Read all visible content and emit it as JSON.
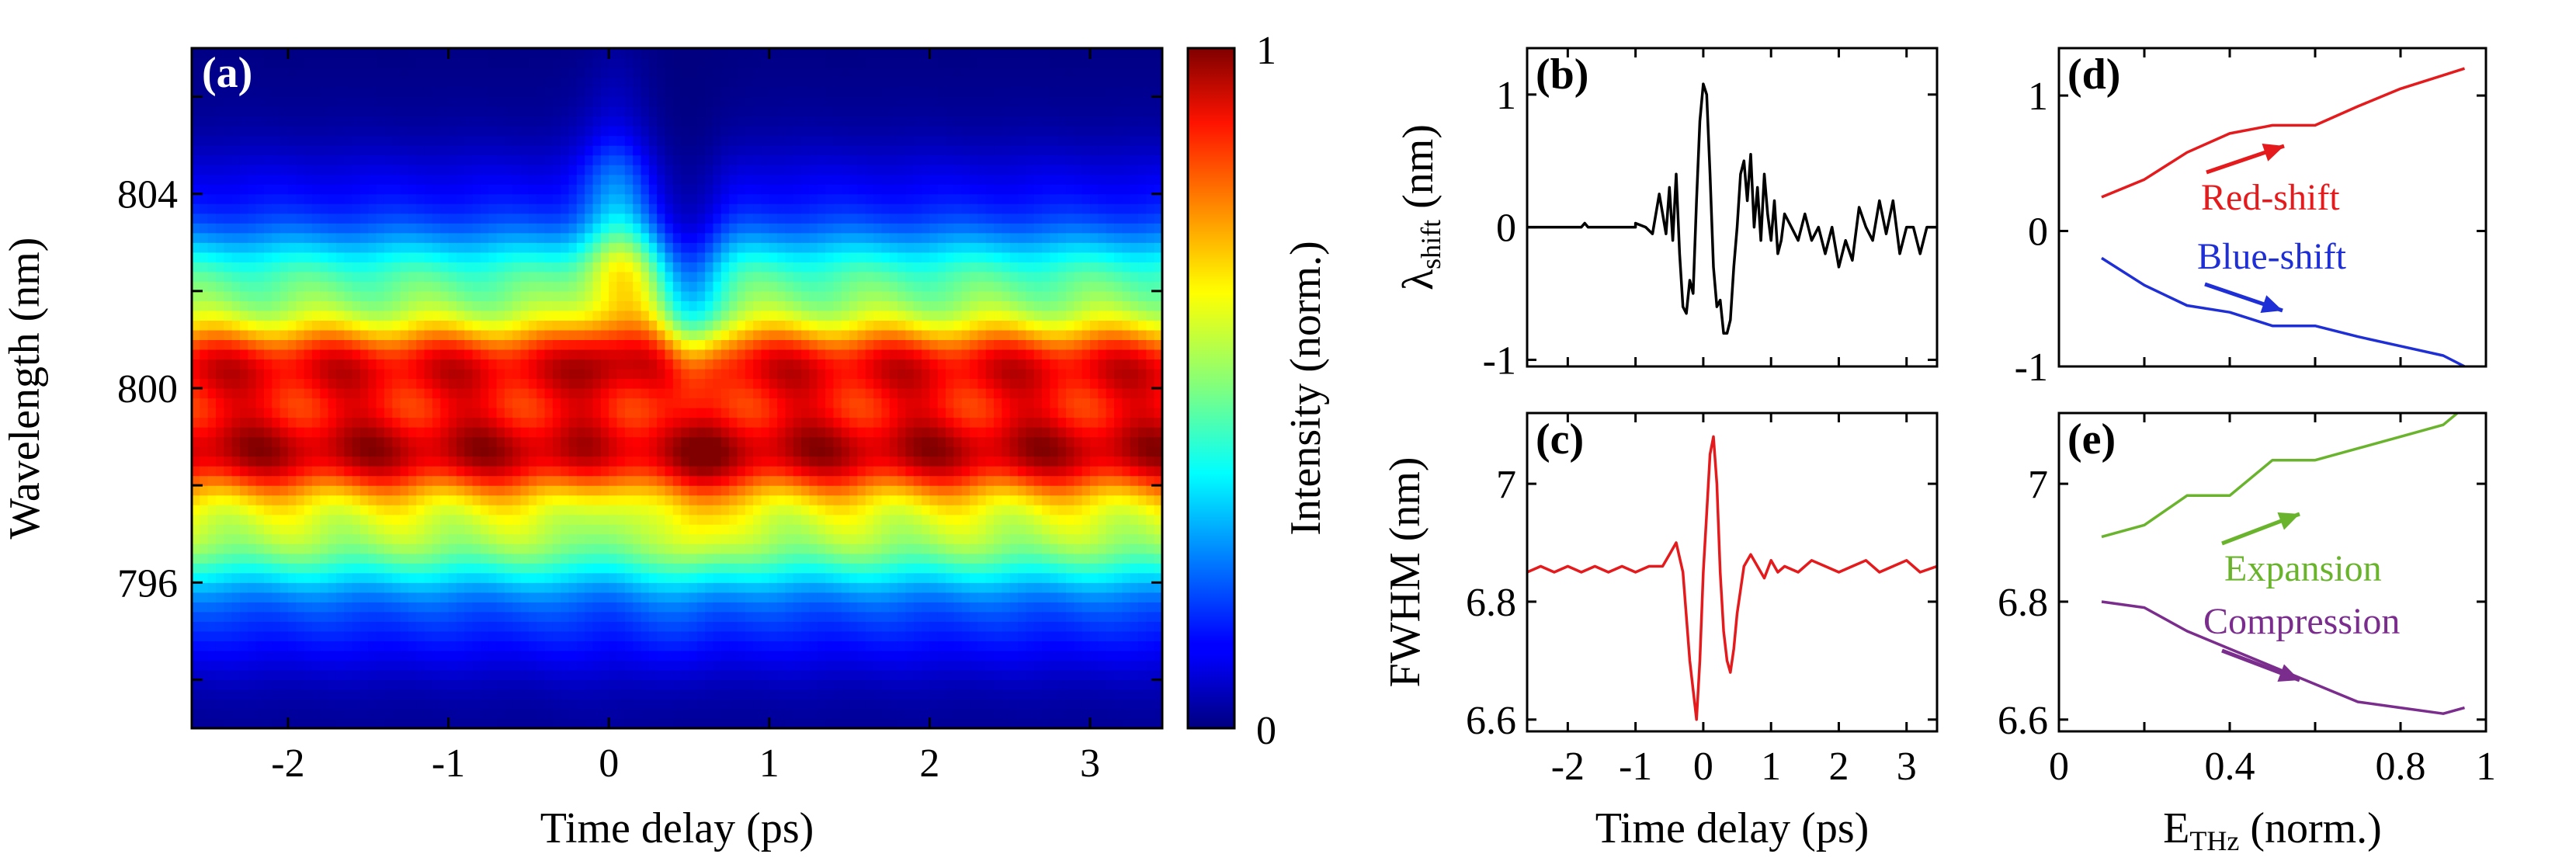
{
  "chart_data": [
    {
      "id": "a",
      "type": "heatmap",
      "panel_label": "(a)",
      "xlabel": "Time delay (ps)",
      "ylabel": "Wavelength (nm)",
      "xlim": [
        -2.6,
        3.45
      ],
      "ylim": [
        793,
        807
      ],
      "xticks": [
        -2,
        -1,
        0,
        1,
        2,
        3
      ],
      "xtick_labels": [
        "-2",
        "-1",
        "0",
        "1",
        "2",
        "3"
      ],
      "yticks": [
        794,
        796,
        798,
        800,
        802,
        804,
        806
      ],
      "ytick_labels": [
        "",
        "796",
        "",
        "800",
        "",
        "804",
        ""
      ],
      "band_center_nm": 799.4,
      "band_sigma_nm": 2.35,
      "colormap": "jet",
      "colorbar": {
        "label": "Intensity (norm.)",
        "min_label": "0",
        "max_label": "1",
        "range": [
          0,
          1
        ]
      }
    },
    {
      "id": "b",
      "type": "line",
      "panel_label": "(b)",
      "xlabel": "",
      "ylabel_main": "λ",
      "ylabel_sub": "shift",
      "ylabel_unit": " (nm)",
      "xlim": [
        -2.6,
        3.45
      ],
      "ylim": [
        -1.05,
        1.35
      ],
      "xticks": [
        -2,
        -1,
        0,
        1,
        2,
        3
      ],
      "yticks": [
        -1,
        0,
        1
      ],
      "ytick_labels": [
        "-1",
        "0",
        "1"
      ],
      "color": "#000000",
      "x": [
        -2.6,
        -2.2,
        -1.8,
        -1.75,
        -1.7,
        -1.4,
        -1.0,
        -1.0,
        -0.85,
        -0.75,
        -0.65,
        -0.55,
        -0.5,
        -0.45,
        -0.4,
        -0.35,
        -0.3,
        -0.25,
        -0.2,
        -0.15,
        -0.1,
        -0.05,
        0,
        0.05,
        0.1,
        0.15,
        0.2,
        0.25,
        0.3,
        0.35,
        0.4,
        0.45,
        0.5,
        0.55,
        0.6,
        0.65,
        0.7,
        0.75,
        0.8,
        0.85,
        0.9,
        0.95,
        1.0,
        1.05,
        1.1,
        1.15,
        1.2,
        1.3,
        1.4,
        1.5,
        1.6,
        1.7,
        1.8,
        1.9,
        2.0,
        2.1,
        2.2,
        2.3,
        2.4,
        2.5,
        2.6,
        2.7,
        2.8,
        2.9,
        3.0,
        3.1,
        3.2,
        3.3,
        3.45
      ],
      "y": [
        0,
        0,
        0,
        0.03,
        0,
        0,
        0,
        0.03,
        0,
        -0.05,
        0.25,
        -0.05,
        0.3,
        -0.1,
        0.4,
        -0.2,
        -0.6,
        -0.65,
        -0.4,
        -0.5,
        0.2,
        0.8,
        1.08,
        1.0,
        0.4,
        -0.3,
        -0.6,
        -0.55,
        -0.8,
        -0.8,
        -0.7,
        -0.3,
        0.0,
        0.4,
        0.5,
        0.2,
        0.55,
        0.0,
        0.3,
        -0.1,
        0.4,
        0.1,
        -0.1,
        0.2,
        -0.2,
        -0.1,
        0.1,
        0.0,
        -0.1,
        0.1,
        -0.1,
        0.0,
        -0.2,
        0.0,
        -0.3,
        -0.1,
        -0.25,
        0.15,
        0.0,
        -0.1,
        0.2,
        -0.05,
        0.2,
        -0.2,
        0.0,
        0.0,
        -0.2,
        0.0,
        0.0
      ]
    },
    {
      "id": "c",
      "type": "line",
      "panel_label": "(c)",
      "xlabel": "Time delay (ps)",
      "ylabel": "FWHM (nm)",
      "xlim": [
        -2.6,
        3.45
      ],
      "ylim": [
        6.58,
        7.12
      ],
      "xticks": [
        -2,
        -1,
        0,
        1,
        2,
        3
      ],
      "xtick_labels": [
        "-2",
        "-1",
        "0",
        "1",
        "2",
        "3"
      ],
      "yticks": [
        6.6,
        6.8,
        7.0
      ],
      "ytick_labels": [
        "6.6",
        "6.8",
        "7"
      ],
      "color": "#e41a1c",
      "x": [
        -2.6,
        -2.4,
        -2.2,
        -2.0,
        -1.8,
        -1.6,
        -1.4,
        -1.2,
        -1.0,
        -0.8,
        -0.6,
        -0.5,
        -0.4,
        -0.3,
        -0.2,
        -0.1,
        -0.05,
        0,
        0.05,
        0.1,
        0.15,
        0.2,
        0.25,
        0.3,
        0.35,
        0.4,
        0.45,
        0.5,
        0.55,
        0.6,
        0.7,
        0.8,
        0.9,
        1.0,
        1.1,
        1.2,
        1.4,
        1.6,
        1.8,
        2.0,
        2.2,
        2.4,
        2.6,
        2.8,
        3.0,
        3.2,
        3.45
      ],
      "y": [
        6.85,
        6.86,
        6.85,
        6.86,
        6.85,
        6.86,
        6.85,
        6.86,
        6.85,
        6.86,
        6.86,
        6.88,
        6.9,
        6.85,
        6.7,
        6.6,
        6.7,
        6.85,
        6.95,
        7.05,
        7.08,
        7.0,
        6.85,
        6.75,
        6.7,
        6.68,
        6.72,
        6.78,
        6.82,
        6.86,
        6.88,
        6.86,
        6.84,
        6.87,
        6.85,
        6.86,
        6.85,
        6.87,
        6.86,
        6.85,
        6.86,
        6.87,
        6.85,
        6.86,
        6.87,
        6.85,
        6.86
      ]
    },
    {
      "id": "d",
      "type": "line",
      "panel_label": "(d)",
      "xlabel": "",
      "ylabel": "",
      "xlim": [
        0,
        1
      ],
      "ylim": [
        -1.0,
        1.35
      ],
      "xticks": [
        0,
        0.2,
        0.4,
        0.6,
        0.8,
        1.0
      ],
      "yticks": [
        -1,
        0,
        1
      ],
      "ytick_labels": [
        "-1",
        "0",
        "1"
      ],
      "series": [
        {
          "name": "Red-shift",
          "color": "#e41a1c",
          "x": [
            0.1,
            0.2,
            0.3,
            0.4,
            0.5,
            0.6,
            0.7,
            0.8,
            0.9,
            0.95
          ],
          "y": [
            0.25,
            0.38,
            0.58,
            0.72,
            0.78,
            0.78,
            0.92,
            1.05,
            1.15,
            1.2
          ]
        },
        {
          "name": "Blue-shift",
          "color": "#1f2fd6",
          "x": [
            0.1,
            0.2,
            0.3,
            0.4,
            0.5,
            0.6,
            0.7,
            0.8,
            0.9,
            0.95
          ],
          "y": [
            -0.2,
            -0.4,
            -0.55,
            -0.6,
            -0.7,
            -0.7,
            -0.78,
            -0.85,
            -0.92,
            -1.0
          ]
        }
      ],
      "annotations": [
        {
          "text": "Red-shift",
          "color": "#e41a1c"
        },
        {
          "text": "Blue-shift",
          "color": "#1f2fd6"
        }
      ]
    },
    {
      "id": "e",
      "type": "line",
      "panel_label": "(e)",
      "xlabel_main": "E",
      "xlabel_sub": "THz",
      "xlabel_unit": " (norm.)",
      "ylabel": "",
      "xlim": [
        0,
        1
      ],
      "ylim": [
        6.58,
        7.12
      ],
      "xticks": [
        0,
        0.2,
        0.4,
        0.6,
        0.8,
        1.0
      ],
      "xtick_labels": [
        "0",
        "",
        "0.4",
        "",
        "0.8",
        "1"
      ],
      "yticks": [
        6.6,
        6.8,
        7.0
      ],
      "ytick_labels": [
        "6.6",
        "6.8",
        "7"
      ],
      "series": [
        {
          "name": "Expansion",
          "color": "#6ab42d",
          "x": [
            0.1,
            0.2,
            0.3,
            0.4,
            0.5,
            0.6,
            0.7,
            0.8,
            0.9,
            0.95
          ],
          "y": [
            6.91,
            6.93,
            6.98,
            6.98,
            7.04,
            7.04,
            7.06,
            7.08,
            7.1,
            7.13
          ]
        },
        {
          "name": "Compression",
          "color": "#7b2d8e",
          "x": [
            0.1,
            0.2,
            0.3,
            0.4,
            0.5,
            0.6,
            0.7,
            0.8,
            0.9,
            0.95
          ],
          "y": [
            6.8,
            6.79,
            6.75,
            6.72,
            6.69,
            6.66,
            6.63,
            6.62,
            6.61,
            6.62
          ]
        }
      ],
      "annotations": [
        {
          "text": "Expansion",
          "color": "#6ab42d"
        },
        {
          "text": "Compression",
          "color": "#7b2d8e"
        }
      ]
    }
  ]
}
